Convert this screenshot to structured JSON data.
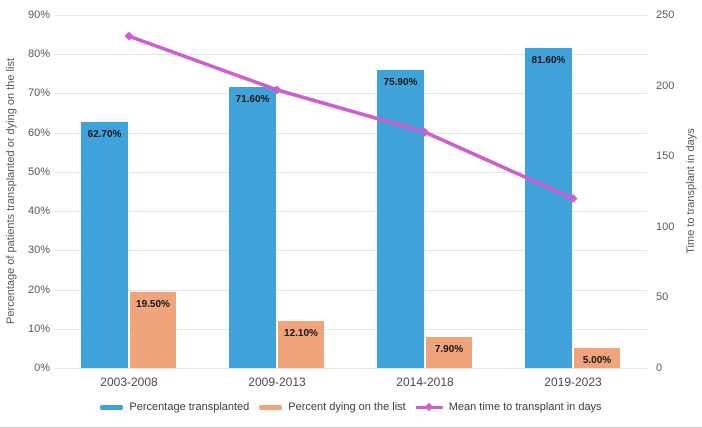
{
  "chart_data": {
    "type": "combo",
    "categories": [
      "2003-2008",
      "2009-2013",
      "2014-2018",
      "2019-2023"
    ],
    "series": [
      {
        "name": "Percentage transplanted",
        "type": "bar",
        "axis": "left",
        "color": "#3FA2DB",
        "values": [
          62.7,
          71.6,
          75.9,
          81.6
        ],
        "value_labels": [
          "62.70%",
          "71.60%",
          "75.90%",
          "81.60%"
        ]
      },
      {
        "name": "Percent dying on the list",
        "type": "bar",
        "axis": "left",
        "color": "#F0A47B",
        "values": [
          19.5,
          12.1,
          7.9,
          5.0
        ],
        "value_labels": [
          "19.50%",
          "12.10%",
          "7.90%",
          "5.00%"
        ]
      },
      {
        "name": "Mean time to transplant in days",
        "type": "line",
        "axis": "right",
        "color": "#CD5FCD",
        "values": [
          235,
          197,
          167,
          120
        ]
      }
    ],
    "left_axis": {
      "label": "Percentage of patients transplanted or dying on the list",
      "min": 0,
      "max": 90,
      "step": 10,
      "ticks": [
        "0%",
        "10%",
        "20%",
        "30%",
        "40%",
        "50%",
        "60%",
        "70%",
        "80%",
        "90%"
      ]
    },
    "right_axis": {
      "label": "Time to transplant in days",
      "min": 0,
      "max": 250,
      "step": 50,
      "ticks": [
        "0",
        "50",
        "100",
        "150",
        "200",
        "250"
      ]
    },
    "grid": true,
    "legend_position": "bottom",
    "colors": {
      "gridline": "#E6E6E6",
      "tick_text": "#595959",
      "bar_label": "#151515",
      "x_label": "#4A4A4A",
      "legend_text": "#3D3D3D"
    }
  }
}
